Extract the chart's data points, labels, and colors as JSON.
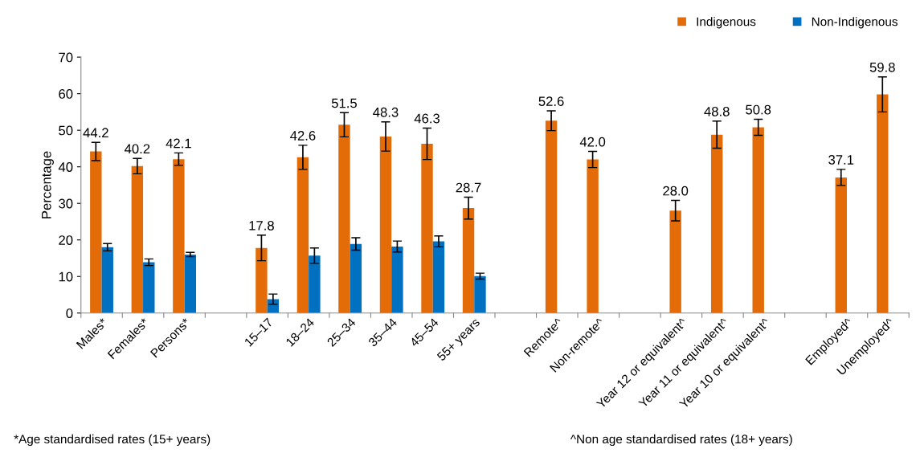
{
  "chart_data": {
    "type": "bar",
    "ylabel": "Percentage",
    "categories": [
      "Males*",
      "Females*",
      "Persons*",
      null,
      "15–17",
      "18–24",
      "25–34",
      "35–44",
      "45–54",
      "55+ years",
      null,
      "Remote^",
      "Non-remote^",
      null,
      "Year 12 or equivalent^",
      "Year 11 or equivalent^",
      "Year 10 or equivalent^",
      null,
      "Employed^",
      "Unemployed^"
    ],
    "series": [
      {
        "name": "Indigenous",
        "color": "#e36c09",
        "values": [
          44.2,
          40.2,
          42.1,
          null,
          17.8,
          42.6,
          51.5,
          48.3,
          46.3,
          28.7,
          null,
          52.6,
          42.0,
          null,
          28.0,
          48.8,
          50.8,
          null,
          37.1,
          59.8
        ],
        "errors": [
          2.5,
          2.1,
          1.7,
          null,
          3.5,
          3.3,
          3.3,
          4.0,
          4.3,
          3.0,
          null,
          2.7,
          2.2,
          null,
          2.8,
          3.7,
          2.2,
          null,
          2.2,
          4.8
        ],
        "value_labels": [
          "44.2",
          "40.2",
          "42.1",
          null,
          "17.8",
          "42.6",
          "51.5",
          "48.3",
          "46.3",
          "28.7",
          null,
          "52.6",
          "42.0",
          null,
          "28.0",
          "48.8",
          "50.8",
          null,
          "37.1",
          "59.8"
        ]
      },
      {
        "name": "Non-Indigenous",
        "color": "#0070c0",
        "values": [
          18.0,
          13.9,
          16.0,
          null,
          3.8,
          15.7,
          18.9,
          18.2,
          19.6,
          10.1,
          null,
          null,
          null,
          null,
          null,
          null,
          null,
          null,
          null,
          null
        ],
        "errors": [
          1.0,
          0.9,
          0.6,
          null,
          1.4,
          2.1,
          1.7,
          1.5,
          1.5,
          0.8,
          null,
          null,
          null,
          null,
          null,
          null,
          null,
          null,
          null,
          null
        ]
      }
    ],
    "ylim": [
      0,
      70
    ],
    "yticks": [
      0,
      10,
      20,
      30,
      40,
      50,
      60,
      70
    ],
    "grid": false,
    "legend": "top right",
    "annotations": [
      "*Age standardised rates (15+ years)",
      "^Non age standardised rates (18+ years)"
    ]
  }
}
